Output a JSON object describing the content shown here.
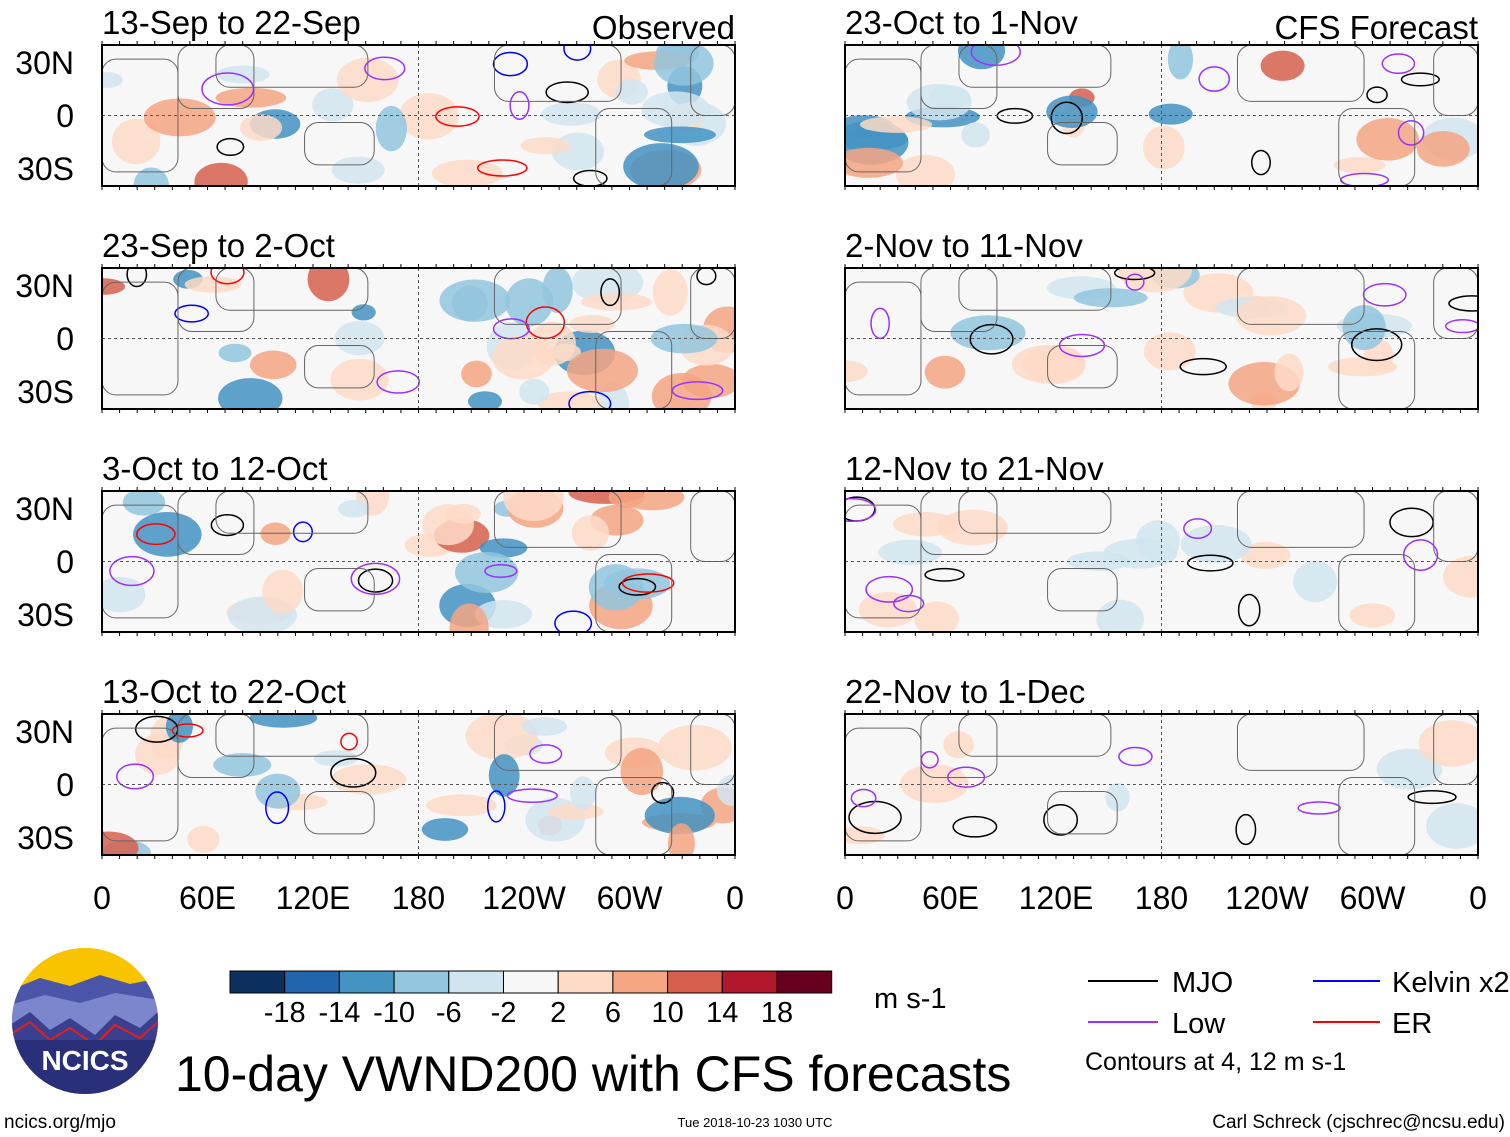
{
  "chart_data": {
    "type": "heatmap",
    "title": "10-day VWND200 with CFS forecasts",
    "variable": "VWND200",
    "units": "m s-1",
    "column_headers": {
      "left": "Observed",
      "right": "CFS Forecast"
    },
    "panels": [
      {
        "label": "13-Sep to 22-Sep",
        "column": "left"
      },
      {
        "label": "23-Sep to 2-Oct",
        "column": "left"
      },
      {
        "label": "3-Oct to 12-Oct",
        "column": "left"
      },
      {
        "label": "13-Oct to 22-Oct",
        "column": "left"
      },
      {
        "label": "23-Oct to 1-Nov",
        "column": "right"
      },
      {
        "label": "2-Nov to 11-Nov",
        "column": "right"
      },
      {
        "label": "12-Nov to 21-Nov",
        "column": "right"
      },
      {
        "label": "22-Nov to 1-Dec",
        "column": "right"
      }
    ],
    "y_ticks": [
      "30N",
      "0",
      "30S"
    ],
    "x_ticks": [
      "0",
      "60E",
      "120E",
      "180",
      "120W",
      "60W",
      "0"
    ],
    "colorbar": {
      "levels": [
        "-18",
        "-14",
        "-10",
        "-6",
        "-2",
        "2",
        "6",
        "10",
        "14",
        "18"
      ],
      "colors": [
        "#0b2f5e",
        "#2166ac",
        "#4393c3",
        "#92c5de",
        "#d1e5f0",
        "#f7f7f7",
        "#fddbc7",
        "#f4a582",
        "#d6604d",
        "#b2182b",
        "#67001f"
      ]
    },
    "legend": [
      {
        "label": "MJO",
        "color": "#000000"
      },
      {
        "label": "Low",
        "color": "#9b30ff"
      },
      {
        "label": "Kelvin x2",
        "color": "#0000ff"
      },
      {
        "label": "ER",
        "color": "#ff0000"
      }
    ],
    "contour_note": "Contours at 4, 12 m s-1"
  },
  "logo": {
    "text": "NCICS"
  },
  "footer": {
    "url": "ncics.org/mjo",
    "timestamp": "Tue 2018-10-23 1030 UTC",
    "credit": "Carl Schreck (cjschrec@ncsu.edu)"
  }
}
